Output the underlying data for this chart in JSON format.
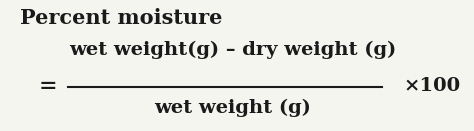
{
  "title": "Percent moisture",
  "numerator": "wet weight(g) – dry weight (g)",
  "denominator": "wet weight (g)",
  "equals": "=",
  "times100": "×100",
  "bg_color": "#f5f5f0",
  "text_color": "#1a1a1a",
  "title_fontsize": 15,
  "formula_fontsize": 14,
  "fig_width": 4.74,
  "fig_height": 1.31,
  "dpi": 100
}
